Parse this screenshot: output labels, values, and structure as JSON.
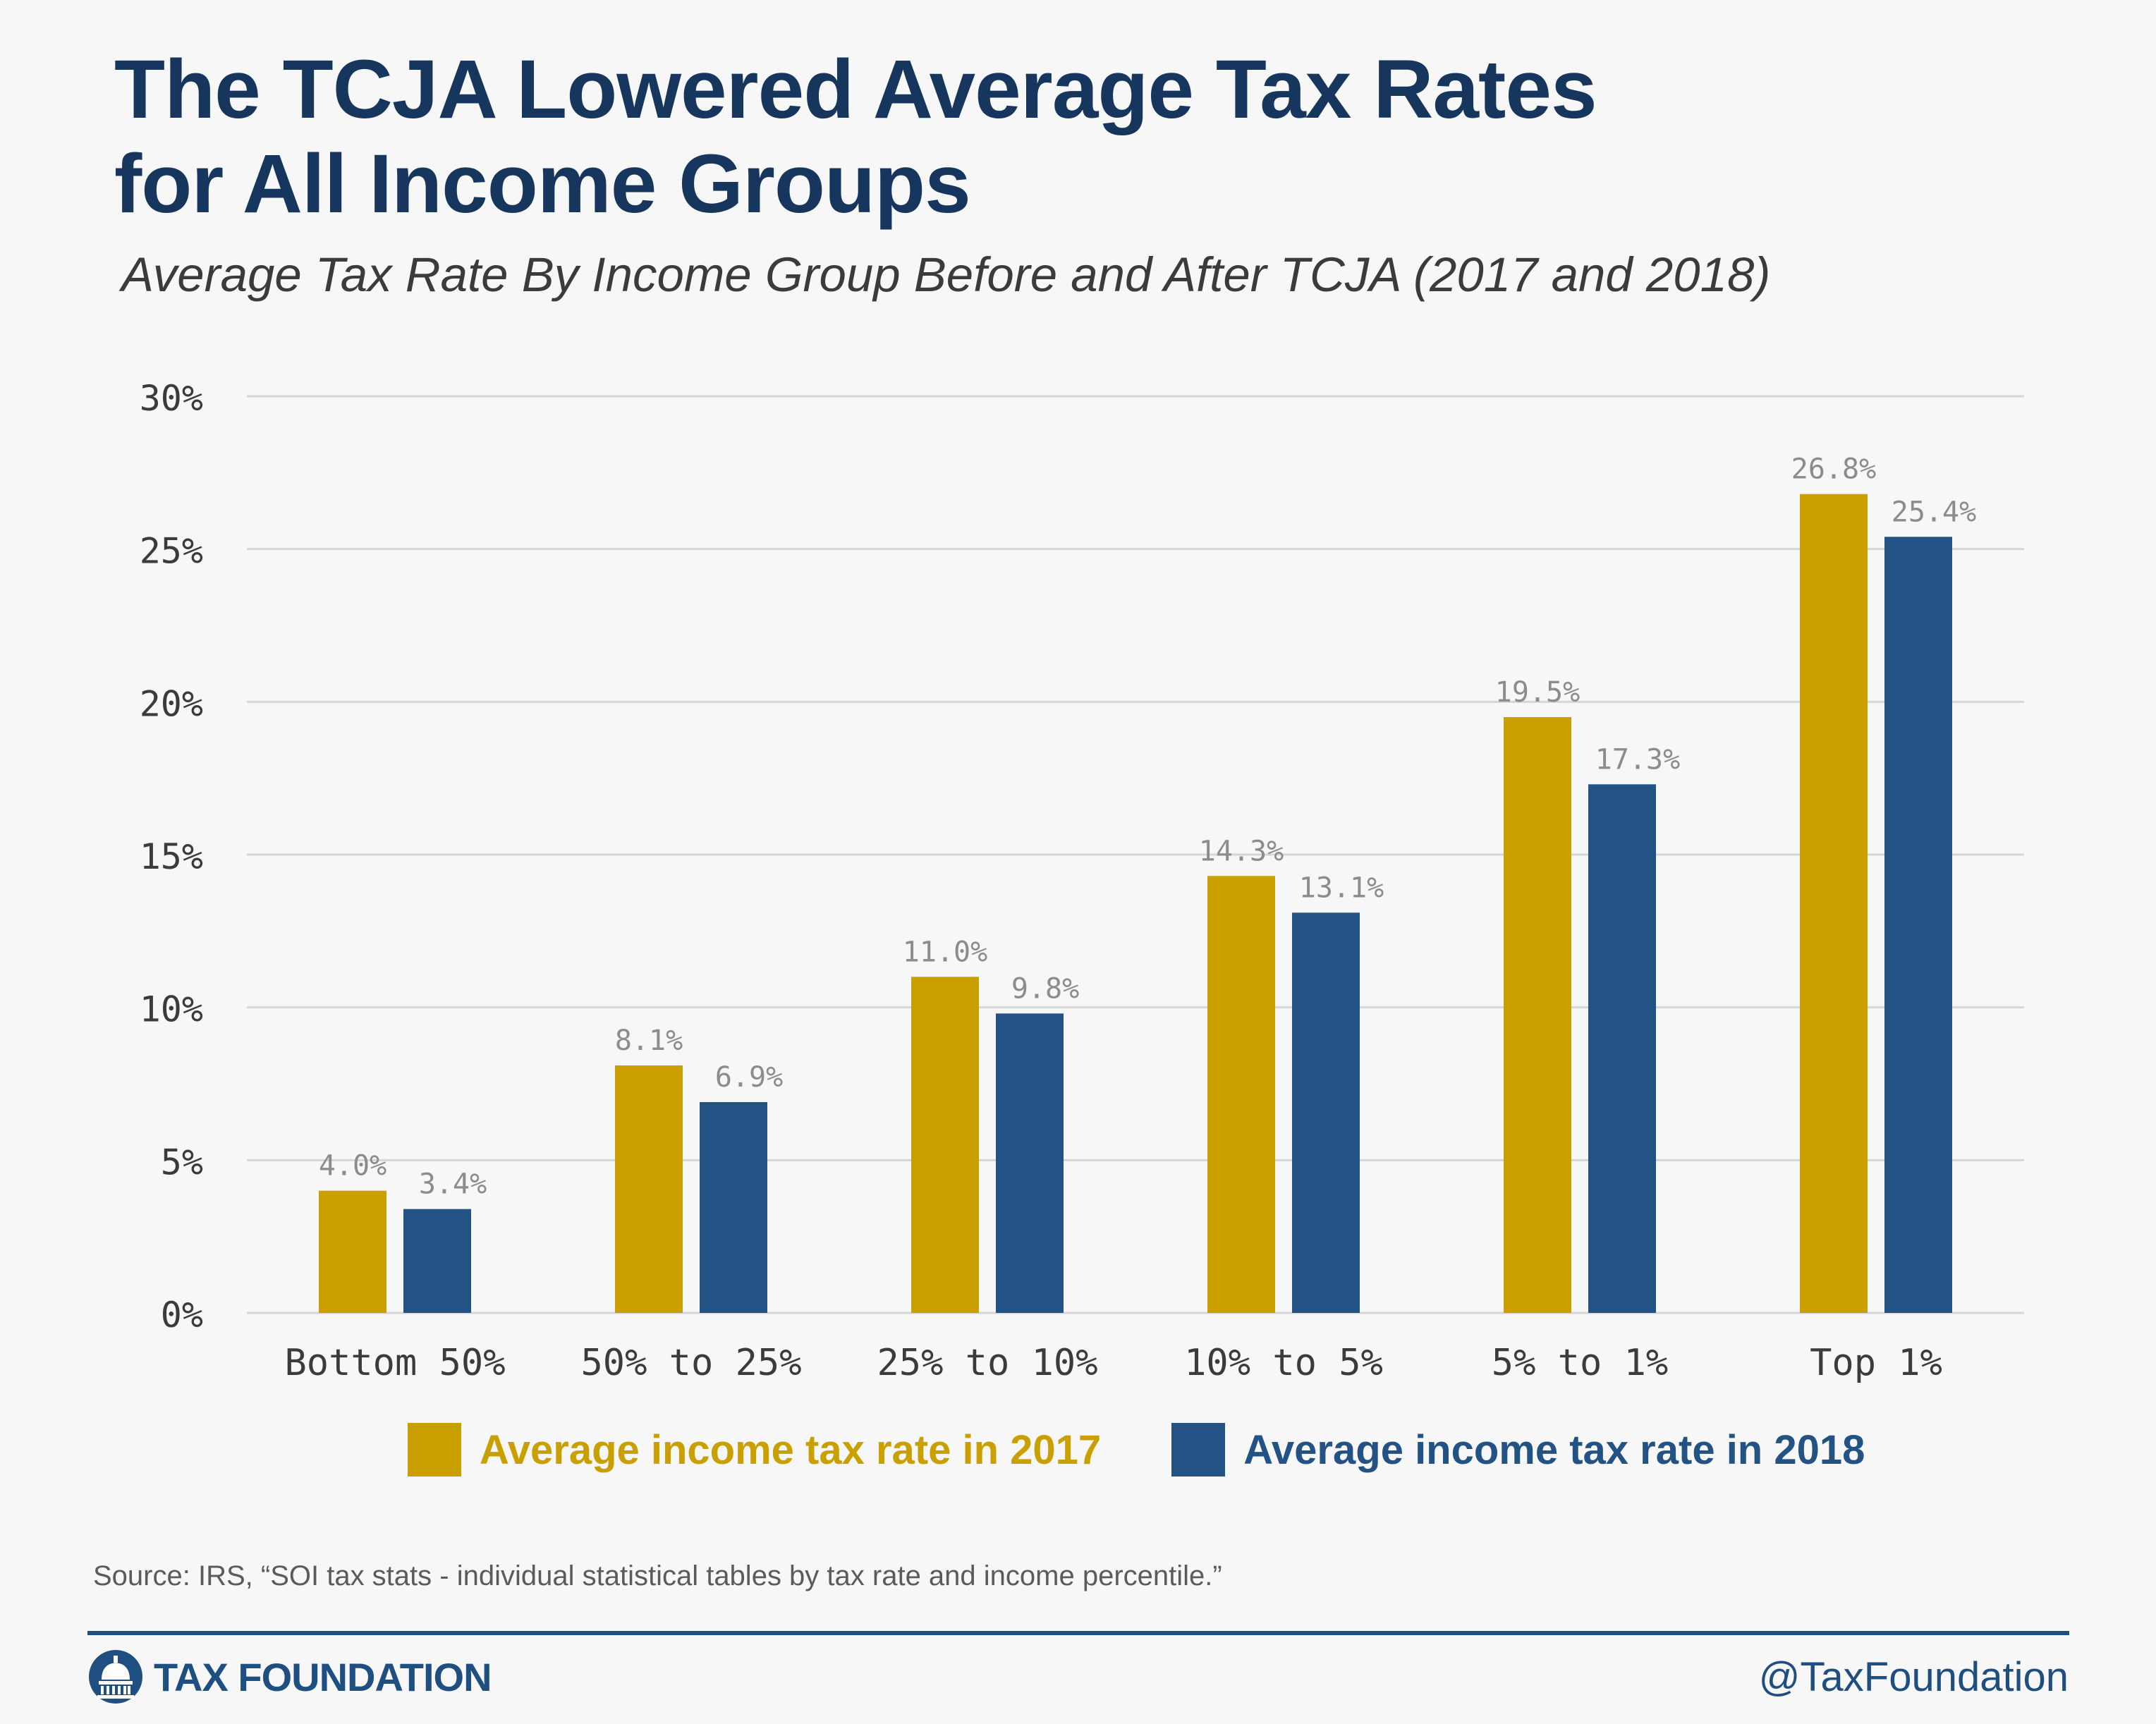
{
  "header": {
    "title_line1": "The TCJA Lowered Average Tax Rates",
    "title_line2": "for All Income Groups",
    "subtitle": "Average Tax Rate By Income Group Before and After TCJA (2017 and 2018)"
  },
  "chart_data": {
    "type": "bar",
    "title": "The TCJA Lowered Average Tax Rates for All Income Groups",
    "subtitle": "Average Tax Rate By Income Group Before and After TCJA (2017 and 2018)",
    "xlabel": "",
    "ylabel": "",
    "categories": [
      "Bottom 50%",
      "50% to 25%",
      "25% to 10%",
      "10% to 5%",
      "5% to 1%",
      "Top 1%"
    ],
    "series": [
      {
        "name": "Average income tax rate in 2017",
        "color": "#c9a000",
        "values": [
          4.0,
          8.1,
          11.0,
          14.3,
          19.5,
          26.8
        ]
      },
      {
        "name": "Average income tax rate in 2018",
        "color": "#235284",
        "values": [
          3.4,
          6.9,
          9.8,
          13.1,
          17.3,
          25.4
        ]
      }
    ],
    "data_labels": [
      [
        "4.0%",
        "8.1%",
        "11.0%",
        "14.3%",
        "19.5%",
        "26.8%"
      ],
      [
        "3.4%",
        "6.9%",
        "9.8%",
        "13.1%",
        "17.3%",
        "25.4%"
      ]
    ],
    "ylim": [
      0,
      30
    ],
    "yticks": [
      0,
      5,
      10,
      15,
      20,
      25,
      30
    ],
    "ytick_labels": [
      "0%",
      "5%",
      "10%",
      "15%",
      "20%",
      "25%",
      "30%"
    ],
    "grid": true,
    "legend_position": "bottom"
  },
  "source": "Source: IRS, “SOI tax stats - individual statistical tables by tax rate and income percentile.”",
  "footer": {
    "brand": "TAX FOUNDATION",
    "brand_icon": "capitol-dome-icon",
    "handle": "@TaxFoundation"
  }
}
